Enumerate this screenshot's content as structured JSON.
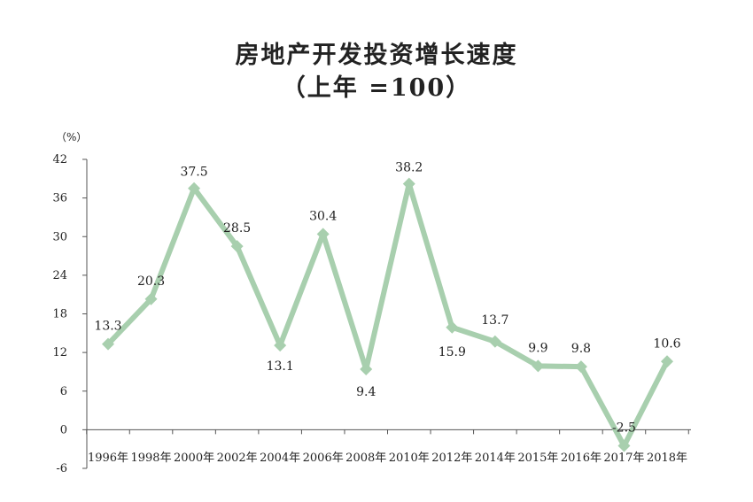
{
  "title_line1": "房地产开发投资增长速度",
  "title_line2": "（上年 =100）",
  "chart_data": {
    "type": "line",
    "title": "房地产开发投资增长速度（上年 =100）",
    "ylabel": "（%）",
    "xlabel": "",
    "ylim": [
      -6,
      42
    ],
    "yticks": [
      -6,
      0,
      6,
      12,
      18,
      24,
      30,
      36,
      42
    ],
    "categories": [
      "1996年",
      "1998年",
      "2000年",
      "2002年",
      "2004年",
      "2006年",
      "2008年",
      "2010年",
      "2012年",
      "2014年",
      "2015年",
      "2016年",
      "2017年",
      "2018年"
    ],
    "values": [
      13.3,
      20.3,
      37.5,
      28.5,
      13.1,
      30.4,
      9.4,
      38.2,
      15.9,
      13.7,
      9.9,
      9.8,
      -2.5,
      10.6
    ],
    "data_labels": [
      "13.3",
      "20.3",
      "37.5",
      "28.5",
      "13.1",
      "30.4",
      "9.4",
      "38.2",
      "15.9",
      "13.7",
      "9.9",
      "9.8",
      "-2.5",
      "10.6"
    ],
    "line_color": "#a8cfae",
    "grid": false,
    "legend": "none"
  }
}
